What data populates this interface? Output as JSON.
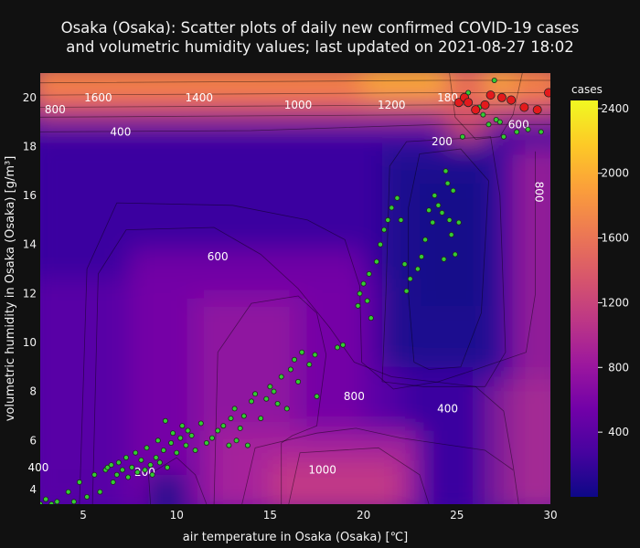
{
  "title_line1": "Osaka (Osaka): Scatter plots of daily new confirmed COVID-19 cases",
  "title_line2": "and volumetric humidity values; last updated on 2021-08-27 18:02",
  "chart_data": {
    "type": "scatter",
    "xlabel": "air temperature in Osaka (Osaka) [℃]",
    "ylabel": "volumetric humidity in Osaka (Osaka) [g/m³]",
    "xlim": [
      2.7,
      30
    ],
    "ylim": [
      3.4,
      21
    ],
    "x_ticks": [
      5,
      10,
      15,
      20,
      25,
      30
    ],
    "y_ticks": [
      4,
      6,
      8,
      10,
      12,
      14,
      16,
      18,
      20
    ],
    "colorbar": {
      "title": "cases",
      "range": [
        0,
        2450
      ],
      "ticks": [
        400,
        800,
        1200,
        1600,
        2000,
        2400
      ],
      "colorscale": [
        "#0d0887",
        "#46039f",
        "#7201a8",
        "#9c179e",
        "#bd3786",
        "#d8576b",
        "#ed7953",
        "#fb9f3a",
        "#fdca26",
        "#f0f921"
      ]
    },
    "contour_labels": [
      {
        "text": "1600",
        "x": 5.8,
        "y": 20.0
      },
      {
        "text": "1400",
        "x": 11.2,
        "y": 20.0
      },
      {
        "text": "800",
        "x": 3.5,
        "y": 19.5
      },
      {
        "text": "1000",
        "x": 16.5,
        "y": 19.7
      },
      {
        "text": "1200",
        "x": 21.5,
        "y": 19.7
      },
      {
        "text": "180",
        "x": 24.5,
        "y": 20.0
      },
      {
        "text": "400",
        "x": 7.0,
        "y": 18.6
      },
      {
        "text": "200",
        "x": 24.2,
        "y": 18.2
      },
      {
        "text": "600",
        "x": 28.3,
        "y": 18.9
      },
      {
        "text": "800",
        "x": 29.2,
        "y": 16.3
      },
      {
        "text": "600",
        "x": 12.2,
        "y": 13.5
      },
      {
        "text": "800",
        "x": 19.5,
        "y": 7.8
      },
      {
        "text": "400",
        "x": 24.5,
        "y": 7.3
      },
      {
        "text": "400",
        "x": 2.6,
        "y": 4.9
      },
      {
        "text": "200",
        "x": 8.3,
        "y": 4.7
      },
      {
        "text": "1000",
        "x": 17.8,
        "y": 4.8
      }
    ],
    "series": [
      {
        "color": "#33cc33",
        "points": [
          [
            2.7,
            3.4
          ],
          [
            3.0,
            3.6
          ],
          [
            3.3,
            3.4
          ],
          [
            3.6,
            3.5
          ],
          [
            4.2,
            3.9
          ],
          [
            4.5,
            3.5
          ],
          [
            4.8,
            4.3
          ],
          [
            5.2,
            3.7
          ],
          [
            5.6,
            4.6
          ],
          [
            5.9,
            3.9
          ],
          [
            6.2,
            4.8
          ],
          [
            6.3,
            4.9
          ],
          [
            6.5,
            5.0
          ],
          [
            6.6,
            4.3
          ],
          [
            6.8,
            4.6
          ],
          [
            6.9,
            5.1
          ],
          [
            7.1,
            4.8
          ],
          [
            7.3,
            5.3
          ],
          [
            7.4,
            4.5
          ],
          [
            7.6,
            4.9
          ],
          [
            7.8,
            5.5
          ],
          [
            7.9,
            4.7
          ],
          [
            8.1,
            5.2
          ],
          [
            8.3,
            4.8
          ],
          [
            8.4,
            5.7
          ],
          [
            8.6,
            5.0
          ],
          [
            8.7,
            4.6
          ],
          [
            8.9,
            5.3
          ],
          [
            9.0,
            6.0
          ],
          [
            9.1,
            5.1
          ],
          [
            9.3,
            5.6
          ],
          [
            9.4,
            6.8
          ],
          [
            9.5,
            4.9
          ],
          [
            9.7,
            5.9
          ],
          [
            9.8,
            6.3
          ],
          [
            10.0,
            5.5
          ],
          [
            10.2,
            6.1
          ],
          [
            10.3,
            6.6
          ],
          [
            10.5,
            5.8
          ],
          [
            10.6,
            6.4
          ],
          [
            10.8,
            6.2
          ],
          [
            11.0,
            5.6
          ],
          [
            11.3,
            6.7
          ],
          [
            11.6,
            5.9
          ],
          [
            11.9,
            6.1
          ],
          [
            12.2,
            6.4
          ],
          [
            12.5,
            6.6
          ],
          [
            12.8,
            5.8
          ],
          [
            12.9,
            6.9
          ],
          [
            13.1,
            7.3
          ],
          [
            13.2,
            6.0
          ],
          [
            13.4,
            6.5
          ],
          [
            13.6,
            7.0
          ],
          [
            13.8,
            5.8
          ],
          [
            14.0,
            7.6
          ],
          [
            14.2,
            7.9
          ],
          [
            14.5,
            6.9
          ],
          [
            14.8,
            7.7
          ],
          [
            15.0,
            8.2
          ],
          [
            15.2,
            8.0
          ],
          [
            15.4,
            7.5
          ],
          [
            15.6,
            8.6
          ],
          [
            15.9,
            7.3
          ],
          [
            16.1,
            8.9
          ],
          [
            16.3,
            9.3
          ],
          [
            16.5,
            8.4
          ],
          [
            16.7,
            9.6
          ],
          [
            17.1,
            9.1
          ],
          [
            17.4,
            9.5
          ],
          [
            17.5,
            7.8
          ],
          [
            18.6,
            9.8
          ],
          [
            18.9,
            9.9
          ],
          [
            19.7,
            11.5
          ],
          [
            19.8,
            12.0
          ],
          [
            20.0,
            12.4
          ],
          [
            20.2,
            11.7
          ],
          [
            20.4,
            11.0
          ],
          [
            20.3,
            12.8
          ],
          [
            20.7,
            13.3
          ],
          [
            20.9,
            14.0
          ],
          [
            21.1,
            14.6
          ],
          [
            21.3,
            15.0
          ],
          [
            21.5,
            15.5
          ],
          [
            21.8,
            15.9
          ],
          [
            22.0,
            15.0
          ],
          [
            22.2,
            13.2
          ],
          [
            22.3,
            12.1
          ],
          [
            22.5,
            12.6
          ],
          [
            22.9,
            13.0
          ],
          [
            23.1,
            13.5
          ],
          [
            23.3,
            14.2
          ],
          [
            23.5,
            15.4
          ],
          [
            23.7,
            14.9
          ],
          [
            23.8,
            16.0
          ],
          [
            24.0,
            15.6
          ],
          [
            24.2,
            15.3
          ],
          [
            24.3,
            13.4
          ],
          [
            24.4,
            17.0
          ],
          [
            24.5,
            16.5
          ],
          [
            24.6,
            15.0
          ],
          [
            24.7,
            14.4
          ],
          [
            24.8,
            16.2
          ],
          [
            24.9,
            13.6
          ],
          [
            25.1,
            14.9
          ],
          [
            25.3,
            18.4
          ],
          [
            25.6,
            20.2
          ],
          [
            26.2,
            19.6
          ],
          [
            26.4,
            19.3
          ],
          [
            26.7,
            18.9
          ],
          [
            27.0,
            20.7
          ],
          [
            27.1,
            19.1
          ],
          [
            27.3,
            19.0
          ],
          [
            27.5,
            18.4
          ],
          [
            28.2,
            18.6
          ],
          [
            28.8,
            18.7
          ],
          [
            29.5,
            18.6
          ]
        ]
      },
      {
        "color": "#e31a1c",
        "points": [
          [
            25.1,
            19.8
          ],
          [
            25.4,
            20.0
          ],
          [
            25.6,
            19.8
          ],
          [
            26.0,
            19.5
          ],
          [
            26.5,
            19.7
          ],
          [
            26.8,
            20.1
          ],
          [
            27.4,
            20.0
          ],
          [
            27.9,
            19.9
          ],
          [
            28.6,
            19.6
          ],
          [
            29.3,
            19.5
          ],
          [
            29.9,
            20.2
          ]
        ]
      }
    ]
  }
}
